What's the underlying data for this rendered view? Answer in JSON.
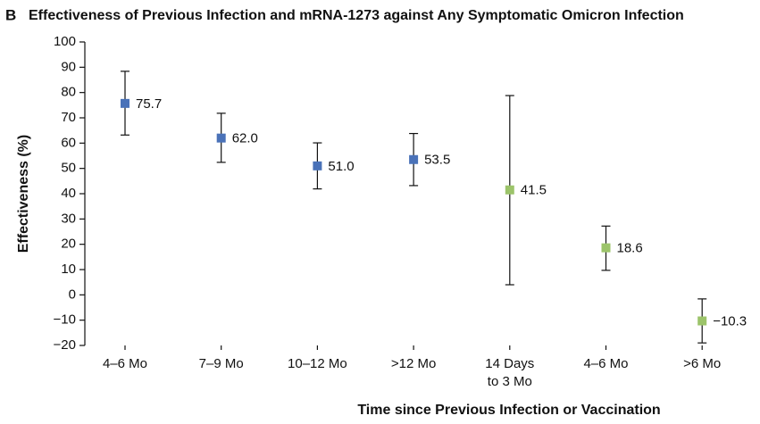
{
  "chart_data": {
    "type": "errorbar",
    "panel_label": "B",
    "title": "Effectiveness of Previous Infection and mRNA-1273 against Any Symptomatic Omicron Infection",
    "x_label": "Time since Previous Infection or Vaccination",
    "y_label": "Effectiveness (%)",
    "categories": [
      "4–6 Mo",
      "7–9 Mo",
      "10–12 Mo",
      ">12 Mo",
      "14 Days\nto 3 Mo",
      "4–6 Mo",
      ">6 Mo"
    ],
    "values": [
      75.7,
      62.0,
      51.0,
      53.5,
      41.5,
      18.6,
      -10.3
    ],
    "value_labels": [
      "75.7",
      "62.0",
      "51.0",
      "53.5",
      "41.5",
      "18.6",
      "−10.3"
    ],
    "lower": [
      63.2,
      52.4,
      41.9,
      43.2,
      4.0,
      9.7,
      -19.0
    ],
    "upper": [
      88.4,
      71.8,
      60.1,
      63.8,
      78.8,
      27.2,
      -1.6
    ],
    "colors": [
      "#4a72b8",
      "#4a72b8",
      "#4a72b8",
      "#4a72b8",
      "#9cc46a",
      "#9cc46a",
      "#9cc46a"
    ],
    "ylim": [
      -20,
      100
    ],
    "yticks": [
      {
        "value": -20,
        "label": "−20"
      },
      {
        "value": -10,
        "label": "−10"
      },
      0,
      10,
      20,
      30,
      40,
      50,
      60,
      70,
      80,
      90,
      100
    ],
    "grid": false
  }
}
